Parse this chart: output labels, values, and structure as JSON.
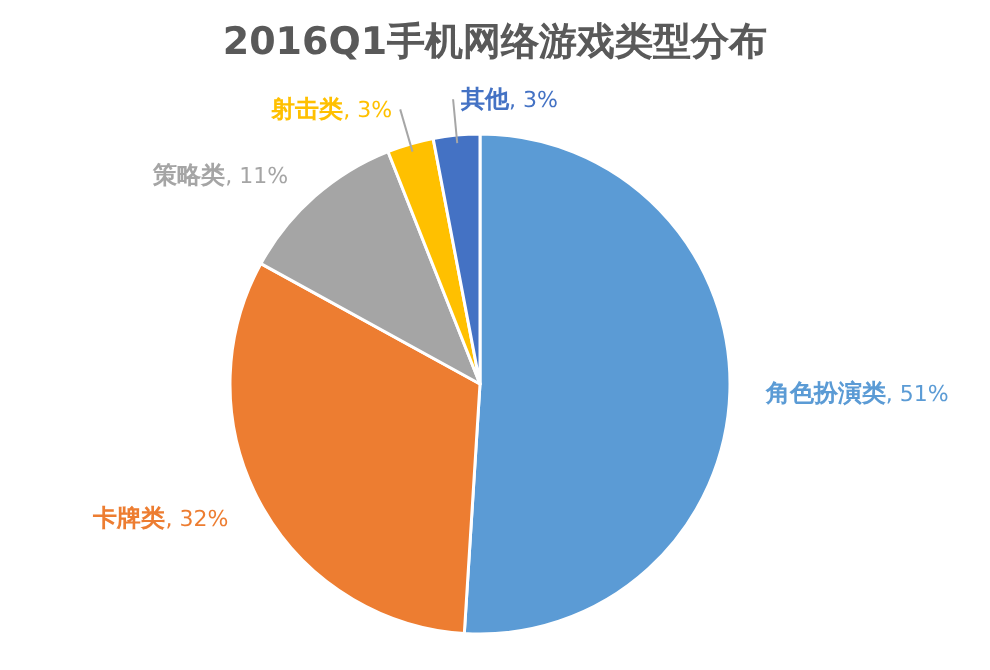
{
  "chart_data": {
    "type": "pie",
    "title": "2016Q1手机网络游戏类型分布",
    "categories": [
      "角色扮演类",
      "卡牌类",
      "策略类",
      "射击类",
      "其他"
    ],
    "values": [
      51,
      32,
      11,
      3,
      3
    ],
    "value_labels": [
      ", 51%",
      ", 32%",
      ", 11%",
      ", 3%",
      ", 3%"
    ],
    "colors": [
      "#5b9bd5",
      "#ed7d31",
      "#a5a5a5",
      "#ffc000",
      "#4472c4"
    ]
  }
}
